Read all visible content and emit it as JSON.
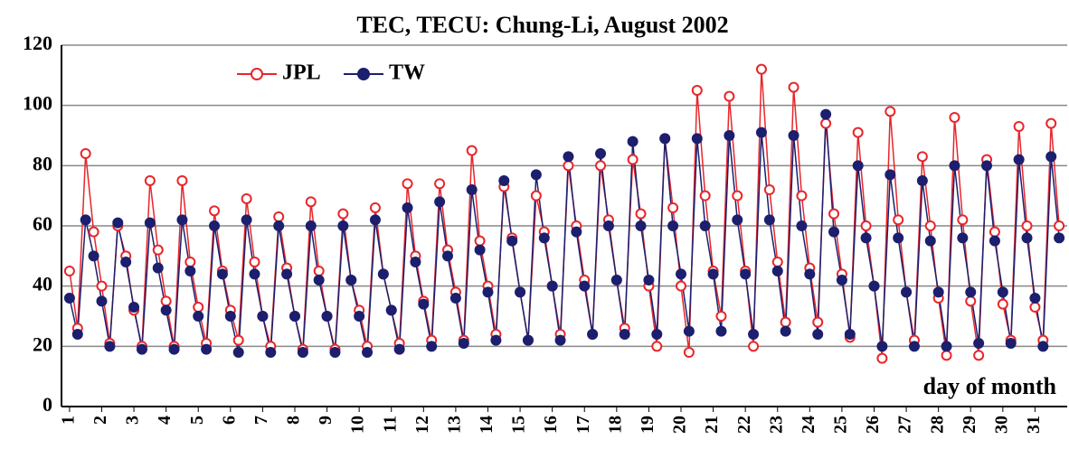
{
  "chart_data": {
    "type": "line",
    "title": "TEC, TECU: Chung-Li, August 2002",
    "xlabel": "day of month",
    "x": [
      1,
      1.25,
      1.5,
      1.75,
      2,
      2.25,
      2.5,
      2.75,
      3,
      3.25,
      3.5,
      3.75,
      4,
      4.25,
      4.5,
      4.75,
      5,
      5.25,
      5.5,
      5.75,
      6,
      6.25,
      6.5,
      6.75,
      7,
      7.25,
      7.5,
      7.75,
      8,
      8.25,
      8.5,
      8.75,
      9,
      9.25,
      9.5,
      9.75,
      10,
      10.25,
      10.5,
      10.75,
      11,
      11.25,
      11.5,
      11.75,
      12,
      12.25,
      12.5,
      12.75,
      13,
      13.25,
      13.5,
      13.75,
      14,
      14.25,
      14.5,
      14.75,
      15,
      15.25,
      15.5,
      15.75,
      16,
      16.25,
      16.5,
      16.75,
      17,
      17.25,
      17.5,
      17.75,
      18,
      18.25,
      18.5,
      18.75,
      19,
      19.25,
      19.5,
      19.75,
      20,
      20.25,
      20.5,
      20.75,
      21,
      21.25,
      21.5,
      21.75,
      22,
      22.25,
      22.5,
      22.75,
      23,
      23.25,
      23.5,
      23.75,
      24,
      24.25,
      24.5,
      24.75,
      25,
      25.25,
      25.5,
      25.75,
      26,
      26.25,
      26.5,
      26.75,
      27,
      27.25,
      27.5,
      27.75,
      28,
      28.25,
      28.5,
      28.75,
      29,
      29.25,
      29.5,
      29.75,
      30,
      30.25,
      30.5,
      30.75,
      31,
      31.25,
      31.5,
      31.75
    ],
    "series": [
      {
        "name": "JPL",
        "color": "#e8262a",
        "marker": "open",
        "values": [
          45,
          26,
          84,
          58,
          40,
          21,
          60,
          50,
          32,
          20,
          75,
          52,
          35,
          20,
          75,
          48,
          33,
          21,
          65,
          45,
          32,
          22,
          69,
          48,
          30,
          20,
          63,
          46,
          30,
          19,
          68,
          45,
          30,
          19,
          64,
          42,
          32,
          20,
          66,
          44,
          32,
          21,
          74,
          50,
          35,
          22,
          74,
          52,
          38,
          22,
          85,
          55,
          40,
          24,
          73,
          56,
          38,
          22,
          70,
          58,
          40,
          24,
          80,
          60,
          42,
          24,
          80,
          62,
          42,
          26,
          82,
          64,
          40,
          20,
          89,
          66,
          40,
          18,
          105,
          70,
          45,
          30,
          103,
          70,
          45,
          20,
          112,
          72,
          48,
          28,
          106,
          70,
          46,
          28,
          94,
          64,
          44,
          23,
          91,
          60,
          40,
          16,
          98,
          62,
          38,
          22,
          83,
          60,
          36,
          17,
          96,
          62,
          35,
          17,
          82,
          58,
          34,
          22,
          93,
          60,
          33,
          22,
          94,
          60
        ]
      },
      {
        "name": "TW",
        "color": "#1c1f6e",
        "marker": "filled",
        "values": [
          36,
          24,
          62,
          50,
          35,
          20,
          61,
          48,
          33,
          19,
          61,
          46,
          32,
          19,
          62,
          45,
          30,
          19,
          60,
          44,
          30,
          18,
          62,
          44,
          30,
          18,
          60,
          44,
          30,
          18,
          60,
          42,
          30,
          18,
          60,
          42,
          30,
          18,
          62,
          44,
          32,
          19,
          66,
          48,
          34,
          20,
          68,
          50,
          36,
          21,
          72,
          52,
          38,
          22,
          75,
          55,
          38,
          22,
          77,
          56,
          40,
          22,
          83,
          58,
          40,
          24,
          84,
          60,
          42,
          24,
          88,
          60,
          42,
          24,
          89,
          60,
          44,
          25,
          89,
          60,
          44,
          25,
          90,
          62,
          44,
          24,
          91,
          62,
          45,
          25,
          90,
          60,
          44,
          24,
          97,
          58,
          42,
          24,
          80,
          56,
          40,
          20,
          77,
          56,
          38,
          20,
          75,
          55,
          38,
          20,
          80,
          56,
          38,
          21,
          80,
          55,
          38,
          21,
          82,
          56,
          36,
          20,
          83,
          56
        ]
      }
    ],
    "xlim": [
      0.75,
      32
    ],
    "xticks": [
      1,
      2,
      3,
      4,
      5,
      6,
      7,
      8,
      9,
      10,
      11,
      12,
      13,
      14,
      15,
      16,
      17,
      18,
      19,
      20,
      21,
      22,
      23,
      24,
      25,
      26,
      27,
      28,
      29,
      30,
      31
    ],
    "ylim": [
      0,
      120
    ],
    "yticks": [
      0,
      20,
      40,
      60,
      80,
      100,
      120
    ],
    "grid": true,
    "legend": "top-left"
  }
}
